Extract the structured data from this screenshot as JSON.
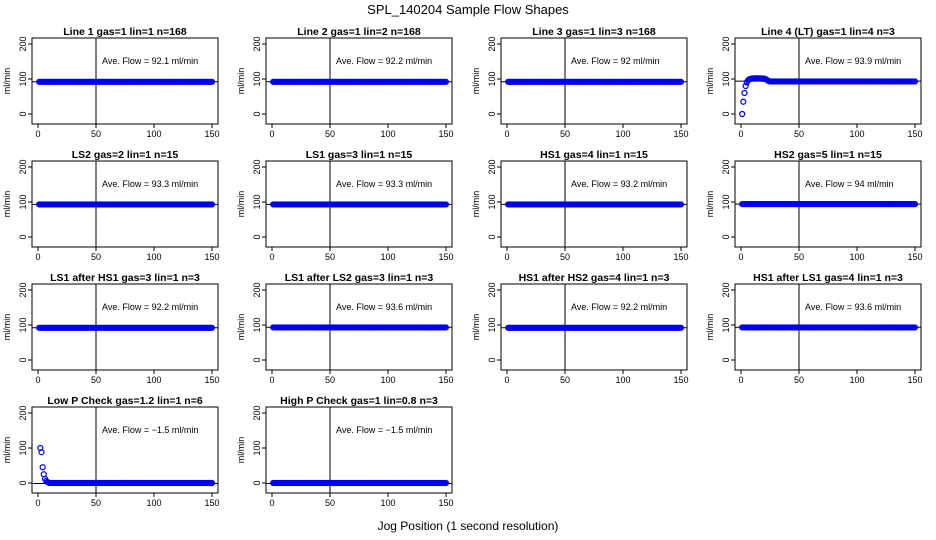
{
  "figure": {
    "title": "SPL_140204  Sample Flow Shapes",
    "xlabel": "Jog Position (1 second resolution)"
  },
  "colors": {
    "points": "#0000ee",
    "axes": "#000000",
    "line": "#000000"
  },
  "chart_data": [
    {
      "type": "scatter",
      "title": "Line 1 gas=1 lin=1 n=168",
      "ylabel": "ml/min",
      "annotation": "Ave. Flow = 92.1  ml/min",
      "xlim": [
        0,
        150
      ],
      "ylim": [
        0,
        200
      ],
      "xticks": [
        0,
        50,
        100,
        150
      ],
      "yticks": [
        0,
        100,
        200
      ],
      "hline": 92.1,
      "vline": 50,
      "flat_value": 92,
      "flat_from": 1,
      "points": []
    },
    {
      "type": "scatter",
      "title": "Line 2 gas=1 lin=2 n=168",
      "ylabel": "ml/min",
      "annotation": "Ave. Flow = 92.2  ml/min",
      "xlim": [
        0,
        150
      ],
      "ylim": [
        0,
        200
      ],
      "xticks": [
        0,
        50,
        100,
        150
      ],
      "yticks": [
        0,
        100,
        200
      ],
      "hline": 92.2,
      "vline": 50,
      "flat_value": 92,
      "flat_from": 1,
      "points": []
    },
    {
      "type": "scatter",
      "title": "Line 3 gas=1 lin=3 n=168",
      "ylabel": "ml/min",
      "annotation": "Ave. Flow = 92  ml/min",
      "xlim": [
        0,
        150
      ],
      "ylim": [
        0,
        200
      ],
      "xticks": [
        0,
        50,
        100,
        150
      ],
      "yticks": [
        0,
        100,
        200
      ],
      "hline": 92,
      "vline": 50,
      "flat_value": 92,
      "flat_from": 1,
      "points": []
    },
    {
      "type": "scatter",
      "title": "Line 4 (LT) gas=1 lin=4 n=3",
      "ylabel": "ml/min",
      "annotation": "Ave. Flow = 93.9  ml/min",
      "xlim": [
        0,
        150
      ],
      "ylim": [
        0,
        200
      ],
      "xticks": [
        0,
        50,
        100,
        150
      ],
      "yticks": [
        0,
        100,
        200
      ],
      "hline": 93.9,
      "vline": 50,
      "flat_value": 93,
      "flat_from": 26,
      "points": [
        [
          1,
          0
        ],
        [
          2,
          35
        ],
        [
          3,
          60
        ],
        [
          4,
          80
        ],
        [
          5,
          90
        ],
        [
          6,
          96
        ],
        [
          7,
          99
        ],
        [
          8,
          100
        ],
        [
          9,
          101
        ],
        [
          10,
          101
        ],
        [
          11,
          102
        ],
        [
          12,
          102
        ],
        [
          13,
          102
        ],
        [
          14,
          102
        ],
        [
          15,
          102
        ],
        [
          16,
          102
        ],
        [
          17,
          102
        ],
        [
          18,
          101
        ],
        [
          19,
          101
        ],
        [
          20,
          101
        ],
        [
          21,
          100
        ],
        [
          22,
          98
        ],
        [
          23,
          96
        ],
        [
          24,
          94
        ],
        [
          25,
          93
        ]
      ]
    },
    {
      "type": "scatter",
      "title": "LS2 gas=2 lin=1 n=15",
      "ylabel": "ml/min",
      "annotation": "Ave. Flow = 93.3  ml/min",
      "xlim": [
        0,
        150
      ],
      "ylim": [
        0,
        200
      ],
      "xticks": [
        0,
        50,
        100,
        150
      ],
      "yticks": [
        0,
        100,
        200
      ],
      "hline": 93.3,
      "vline": 50,
      "flat_value": 93,
      "flat_from": 1,
      "points": []
    },
    {
      "type": "scatter",
      "title": "LS1 gas=3 lin=1 n=15",
      "ylabel": "ml/min",
      "annotation": "Ave. Flow = 93.3  ml/min",
      "xlim": [
        0,
        150
      ],
      "ylim": [
        0,
        200
      ],
      "xticks": [
        0,
        50,
        100,
        150
      ],
      "yticks": [
        0,
        100,
        200
      ],
      "hline": 93.3,
      "vline": 50,
      "flat_value": 93,
      "flat_from": 1,
      "points": []
    },
    {
      "type": "scatter",
      "title": "HS1 gas=4 lin=1 n=15",
      "ylabel": "ml/min",
      "annotation": "Ave. Flow = 93.2  ml/min",
      "xlim": [
        0,
        150
      ],
      "ylim": [
        0,
        200
      ],
      "xticks": [
        0,
        50,
        100,
        150
      ],
      "yticks": [
        0,
        100,
        200
      ],
      "hline": 93.2,
      "vline": 50,
      "flat_value": 93,
      "flat_from": 1,
      "points": []
    },
    {
      "type": "scatter",
      "title": "HS2 gas=5 lin=1 n=15",
      "ylabel": "ml/min",
      "annotation": "Ave. Flow = 94  ml/min",
      "xlim": [
        0,
        150
      ],
      "ylim": [
        0,
        200
      ],
      "xticks": [
        0,
        50,
        100,
        150
      ],
      "yticks": [
        0,
        100,
        200
      ],
      "hline": 94,
      "vline": 50,
      "flat_value": 94,
      "flat_from": 1,
      "points": []
    },
    {
      "type": "scatter",
      "title": "LS1 after HS1 gas=3 lin=1 n=3",
      "ylabel": "ml/min",
      "annotation": "Ave. Flow = 92.2  ml/min",
      "xlim": [
        0,
        150
      ],
      "ylim": [
        0,
        200
      ],
      "xticks": [
        0,
        50,
        100,
        150
      ],
      "yticks": [
        0,
        100,
        200
      ],
      "hline": 92.2,
      "vline": 50,
      "flat_value": 92,
      "flat_from": 1,
      "points": []
    },
    {
      "type": "scatter",
      "title": "LS1 after LS2 gas=3 lin=1 n=3",
      "ylabel": "ml/min",
      "annotation": "Ave. Flow = 93.6  ml/min",
      "xlim": [
        0,
        150
      ],
      "ylim": [
        0,
        200
      ],
      "xticks": [
        0,
        50,
        100,
        150
      ],
      "yticks": [
        0,
        100,
        200
      ],
      "hline": 93.6,
      "vline": 50,
      "flat_value": 93,
      "flat_from": 1,
      "points": []
    },
    {
      "type": "scatter",
      "title": "HS1 after HS2 gas=4 lin=1 n=3",
      "ylabel": "ml/min",
      "annotation": "Ave. Flow = 92.2  ml/min",
      "xlim": [
        0,
        150
      ],
      "ylim": [
        0,
        200
      ],
      "xticks": [
        0,
        50,
        100,
        150
      ],
      "yticks": [
        0,
        100,
        200
      ],
      "hline": 92.2,
      "vline": 50,
      "flat_value": 92,
      "flat_from": 1,
      "points": []
    },
    {
      "type": "scatter",
      "title": "HS1 after LS1 gas=4 lin=1 n=3",
      "ylabel": "ml/min",
      "annotation": "Ave. Flow = 93.6  ml/min",
      "xlim": [
        0,
        150
      ],
      "ylim": [
        0,
        200
      ],
      "xticks": [
        0,
        50,
        100,
        150
      ],
      "yticks": [
        0,
        100,
        200
      ],
      "hline": 93.6,
      "vline": 50,
      "flat_value": 93,
      "flat_from": 1,
      "points": []
    },
    {
      "type": "scatter",
      "title": "Low P Check gas=1.2 lin=1 n=6",
      "ylabel": "ml/min",
      "annotation": "Ave. Flow = −1.5  ml/min",
      "xlim": [
        0,
        150
      ],
      "ylim": [
        0,
        200
      ],
      "xticks": [
        0,
        50,
        100,
        150
      ],
      "yticks": [
        0,
        100,
        200
      ],
      "hline": -1.5,
      "vline": 50,
      "flat_value": 0,
      "flat_from": 10,
      "points": [
        [
          2,
          100
        ],
        [
          3,
          88
        ],
        [
          4,
          45
        ],
        [
          5,
          25
        ],
        [
          6,
          12
        ],
        [
          7,
          6
        ],
        [
          8,
          3
        ],
        [
          9,
          1
        ]
      ]
    },
    {
      "type": "scatter",
      "title": "High P Check gas=1 lin=0.8 n=3",
      "ylabel": "ml/min",
      "annotation": "Ave. Flow = −1.5  ml/min",
      "xlim": [
        0,
        150
      ],
      "ylim": [
        0,
        200
      ],
      "xticks": [
        0,
        50,
        100,
        150
      ],
      "yticks": [
        0,
        100,
        200
      ],
      "hline": -1.5,
      "vline": 50,
      "flat_value": 0,
      "flat_from": 1,
      "points": []
    }
  ]
}
